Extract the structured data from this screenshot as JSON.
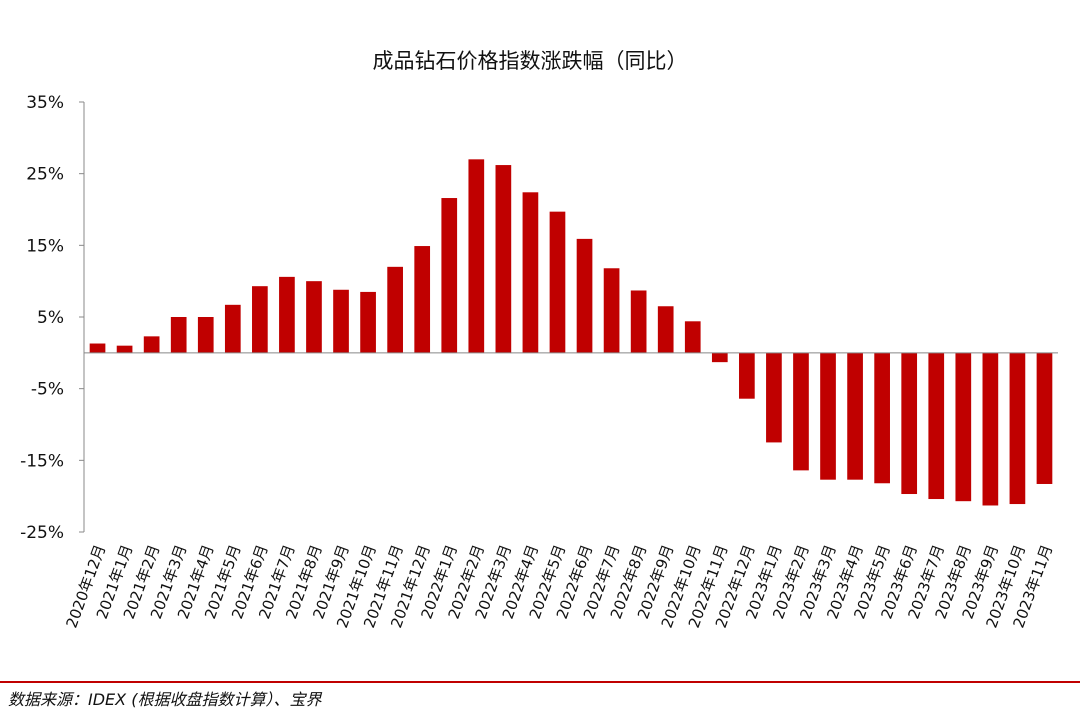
{
  "chart_data": {
    "type": "bar",
    "title": "成品钻石价格指数涨跌幅（同比）",
    "categories": [
      "2020年12月",
      "2021年1月",
      "2021年2月",
      "2021年3月",
      "2021年4月",
      "2021年5月",
      "2021年6月",
      "2021年7月",
      "2021年8月",
      "2021年9月",
      "2021年10月",
      "2021年11月",
      "2021年12月",
      "2022年1月",
      "2022年2月",
      "2022年3月",
      "2022年4月",
      "2022年5月",
      "2022年6月",
      "2022年7月",
      "2022年8月",
      "2022年9月",
      "2022年10月",
      "2022年11月",
      "2022年12月",
      "2023年1月",
      "2023年2月",
      "2023年3月",
      "2023年4月",
      "2023年5月",
      "2023年6月",
      "2023年7月",
      "2023年8月",
      "2023年9月",
      "2023年10月",
      "2023年11月"
    ],
    "values": [
      1.3,
      1.0,
      2.3,
      5.0,
      5.0,
      6.7,
      9.3,
      10.6,
      10.0,
      8.8,
      8.5,
      12.0,
      14.9,
      21.6,
      27.0,
      26.2,
      22.4,
      19.7,
      15.9,
      11.8,
      8.7,
      6.5,
      4.4,
      -1.3,
      -6.4,
      -12.5,
      -16.4,
      -17.7,
      -17.7,
      -18.2,
      -19.7,
      -20.4,
      -20.7,
      -21.3,
      -21.1,
      -18.3
    ],
    "ylim": [
      -25,
      35
    ],
    "yticks": [
      35,
      25,
      15,
      5,
      -5,
      -15,
      -25
    ],
    "ytick_labels": [
      "35%",
      "25%",
      "15%",
      "5%",
      "-5%",
      "-15%",
      "-25%"
    ],
    "xlabel": "",
    "ylabel": "",
    "bar_color": "#c00000",
    "grid": false
  },
  "source": "数据来源：IDEX (根据收盘指数计算）、宝界"
}
